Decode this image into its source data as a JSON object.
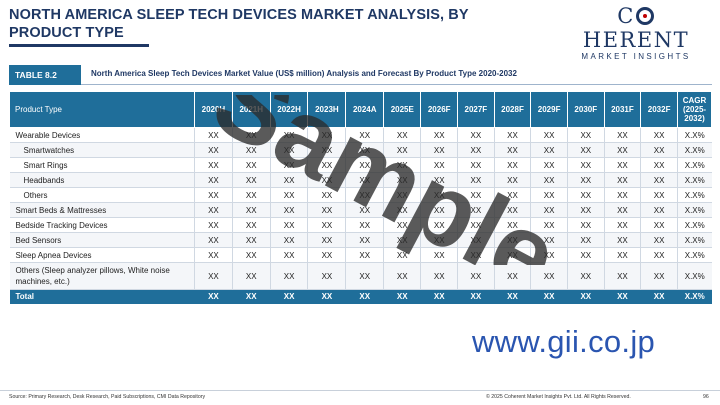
{
  "header": {
    "title": "NORTH AMERICA SLEEP TECH DEVICES MARKET ANALYSIS, BY PRODUCT TYPE",
    "logo_main_pre": "C",
    "logo_main_post": "HERENT",
    "logo_sub": "MARKET INSIGHTS"
  },
  "caption": {
    "tag": "TABLE 8.2",
    "text": "North America Sleep Tech Devices Market Value (US$ million) Analysis and Forecast By Product Type 2020-2032"
  },
  "table": {
    "columns": [
      "Product Type",
      "2020H",
      "2021H",
      "2022H",
      "2023H",
      "2024A",
      "2025E",
      "2026F",
      "2027F",
      "2028F",
      "2029F",
      "2030F",
      "2031F",
      "2032F",
      "CAGR (2025-2032)"
    ],
    "rows": [
      {
        "label": "Wearable Devices",
        "sub": false,
        "values": [
          "XX",
          "XX",
          "XX",
          "XX",
          "XX",
          "XX",
          "XX",
          "XX",
          "XX",
          "XX",
          "XX",
          "XX",
          "XX",
          "X.X%"
        ]
      },
      {
        "label": "Smartwatches",
        "sub": true,
        "values": [
          "XX",
          "XX",
          "XX",
          "XX",
          "XX",
          "XX",
          "XX",
          "XX",
          "XX",
          "XX",
          "XX",
          "XX",
          "XX",
          "X.X%"
        ]
      },
      {
        "label": "Smart Rings",
        "sub": true,
        "values": [
          "XX",
          "XX",
          "XX",
          "XX",
          "XX",
          "XX",
          "XX",
          "XX",
          "XX",
          "XX",
          "XX",
          "XX",
          "XX",
          "X.X%"
        ]
      },
      {
        "label": "Headbands",
        "sub": true,
        "values": [
          "XX",
          "XX",
          "XX",
          "XX",
          "XX",
          "XX",
          "XX",
          "XX",
          "XX",
          "XX",
          "XX",
          "XX",
          "XX",
          "X.X%"
        ]
      },
      {
        "label": "Others",
        "sub": true,
        "values": [
          "XX",
          "XX",
          "XX",
          "XX",
          "XX",
          "XX",
          "XX",
          "XX",
          "XX",
          "XX",
          "XX",
          "XX",
          "XX",
          "X.X%"
        ]
      },
      {
        "label": "Smart Beds & Mattresses",
        "sub": false,
        "values": [
          "XX",
          "XX",
          "XX",
          "XX",
          "XX",
          "XX",
          "XX",
          "XX",
          "XX",
          "XX",
          "XX",
          "XX",
          "XX",
          "X.X%"
        ]
      },
      {
        "label": "Bedside Tracking Devices",
        "sub": false,
        "values": [
          "XX",
          "XX",
          "XX",
          "XX",
          "XX",
          "XX",
          "XX",
          "XX",
          "XX",
          "XX",
          "XX",
          "XX",
          "XX",
          "X.X%"
        ]
      },
      {
        "label": "Bed Sensors",
        "sub": false,
        "values": [
          "XX",
          "XX",
          "XX",
          "XX",
          "XX",
          "XX",
          "XX",
          "XX",
          "XX",
          "XX",
          "XX",
          "XX",
          "XX",
          "X.X%"
        ]
      },
      {
        "label": "Sleep Apnea Devices",
        "sub": false,
        "values": [
          "XX",
          "XX",
          "XX",
          "XX",
          "XX",
          "XX",
          "XX",
          "XX",
          "XX",
          "XX",
          "XX",
          "XX",
          "XX",
          "X.X%"
        ]
      },
      {
        "label": "Others (Sleep analyzer pillows, White noise machines, etc.)",
        "sub": false,
        "tall": true,
        "values": [
          "XX",
          "XX",
          "XX",
          "XX",
          "XX",
          "XX",
          "XX",
          "XX",
          "XX",
          "XX",
          "XX",
          "XX",
          "XX",
          "X.X%"
        ]
      }
    ],
    "total": {
      "label": "Total",
      "values": [
        "XX",
        "XX",
        "XX",
        "XX",
        "XX",
        "XX",
        "XX",
        "XX",
        "XX",
        "XX",
        "XX",
        "XX",
        "XX",
        "X.X%"
      ]
    }
  },
  "watermark": {
    "text": "Sample",
    "color": "#2b2b2b"
  },
  "gii": {
    "text": "www.gii.co.jp"
  },
  "footer": {
    "source": "Source: Primary Research, Desk Research, Paid Subscriptions, CMI Data Repository",
    "copyright": "© 2025 Coherent Market Insights Pvt. Ltd. All Rights Reserved.",
    "page": "96",
    "dot_colors": [
      "#1f6e9a",
      "#4aa3d6",
      "#1f3864",
      "#7fc2e6",
      "#1f6e9a",
      "#c5d8e8"
    ]
  },
  "colors": {
    "accent": "#1f6e9a",
    "title": "#1f3864"
  }
}
